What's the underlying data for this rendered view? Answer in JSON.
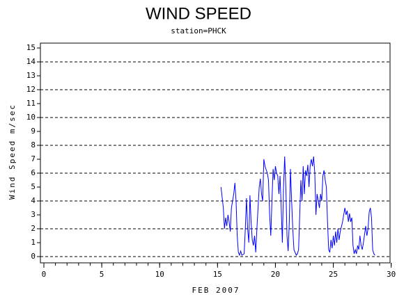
{
  "chart_data": {
    "type": "line",
    "title": "WIND SPEED",
    "subtitle": "station=PHCK",
    "ylabel": "Wind Speed m/sec",
    "xlabel": "FEB 2007",
    "xlim": [
      -0.3,
      29.9
    ],
    "ylim": [
      -0.45,
      15.35
    ],
    "xticks": [
      0,
      5,
      10,
      15,
      20,
      25,
      30
    ],
    "xminor_ticks": [
      0,
      1,
      2,
      3,
      4,
      5,
      6,
      7,
      8,
      9,
      10,
      11,
      12,
      13,
      14,
      15,
      16,
      17,
      18,
      19,
      20,
      21,
      22,
      23,
      24,
      25,
      26,
      27,
      28,
      29,
      30
    ],
    "yticks": [
      0,
      1,
      2,
      3,
      4,
      5,
      6,
      7,
      8,
      9,
      10,
      11,
      12,
      13,
      14,
      15
    ],
    "grid_values": [
      0,
      2,
      4,
      6,
      8,
      10,
      12,
      14
    ],
    "series": [
      {
        "color": "#0000ff",
        "x": [
          15.3,
          15.5,
          15.6,
          15.7,
          15.8,
          15.9,
          16.0,
          16.1,
          16.2,
          16.4,
          16.5,
          16.6,
          16.7,
          16.8,
          16.9,
          17.0,
          17.1,
          17.3,
          17.4,
          17.5,
          17.6,
          17.7,
          17.8,
          17.9,
          18.0,
          18.1,
          18.2,
          18.3,
          18.4,
          18.6,
          18.7,
          18.8,
          18.9,
          19.0,
          19.1,
          19.3,
          19.4,
          19.5,
          19.6,
          19.7,
          19.8,
          19.9,
          20.0,
          20.1,
          20.2,
          20.3,
          20.4,
          20.5,
          20.6,
          20.7,
          20.8,
          20.9,
          21.0,
          21.1,
          21.2,
          21.3,
          21.4,
          21.5,
          21.6,
          21.7,
          21.8,
          21.9,
          22.0,
          22.1,
          22.2,
          22.3,
          22.4,
          22.5,
          22.6,
          22.7,
          22.8,
          22.9,
          23.0,
          23.1,
          23.2,
          23.3,
          23.4,
          23.5,
          23.6,
          23.7,
          23.8,
          23.9,
          24.0,
          24.1,
          24.2,
          24.3,
          24.4,
          24.5,
          24.6,
          24.7,
          24.8,
          24.9,
          25.0,
          25.1,
          25.2,
          25.3,
          25.4,
          25.5,
          25.6,
          25.8,
          25.9,
          26.0,
          26.1,
          26.2,
          26.3,
          26.4,
          26.5,
          26.6,
          26.7,
          26.8,
          26.9,
          27.0,
          27.1,
          27.2,
          27.3,
          27.4,
          27.5,
          27.6,
          27.8,
          27.9,
          28.0,
          28.1,
          28.2,
          28.3,
          28.4,
          28.5,
          28.6
        ],
        "values": [
          5.0,
          3.5,
          2.0,
          2.8,
          2.2,
          3.0,
          2.5,
          1.8,
          3.5,
          4.5,
          5.3,
          4.0,
          1.5,
          0.3,
          0.1,
          0.4,
          0.1,
          0.2,
          2.0,
          4.2,
          2.0,
          1.0,
          4.4,
          2.5,
          1.2,
          0.8,
          1.5,
          0.3,
          2.0,
          5.0,
          5.6,
          4.5,
          4.0,
          7.0,
          6.5,
          6.0,
          5.5,
          3.0,
          1.5,
          4.0,
          6.3,
          5.5,
          6.5,
          6.0,
          5.8,
          4.5,
          5.8,
          3.5,
          1.0,
          5.0,
          7.2,
          5.0,
          1.5,
          0.4,
          2.5,
          6.3,
          4.0,
          2.0,
          0.5,
          0.3,
          0.1,
          0.2,
          0.5,
          3.0,
          5.5,
          4.0,
          6.5,
          4.5,
          6.2,
          5.8,
          6.6,
          5.0,
          6.5,
          7.0,
          6.5,
          7.2,
          6.0,
          3.0,
          4.5,
          4.0,
          3.5,
          4.5,
          4.0,
          5.8,
          6.2,
          5.5,
          5.0,
          2.5,
          0.5,
          0.3,
          1.2,
          0.6,
          1.5,
          0.8,
          1.8,
          1.0,
          2.0,
          1.2,
          1.8,
          2.5,
          3.0,
          3.5,
          3.0,
          3.3,
          2.5,
          3.1,
          2.5,
          2.8,
          0.8,
          0.2,
          0.5,
          0.2,
          0.8,
          0.5,
          1.5,
          0.8,
          0.5,
          1.0,
          2.2,
          1.5,
          2.0,
          3.2,
          3.5,
          2.8,
          0.5,
          0.2,
          0.1
        ]
      }
    ]
  }
}
